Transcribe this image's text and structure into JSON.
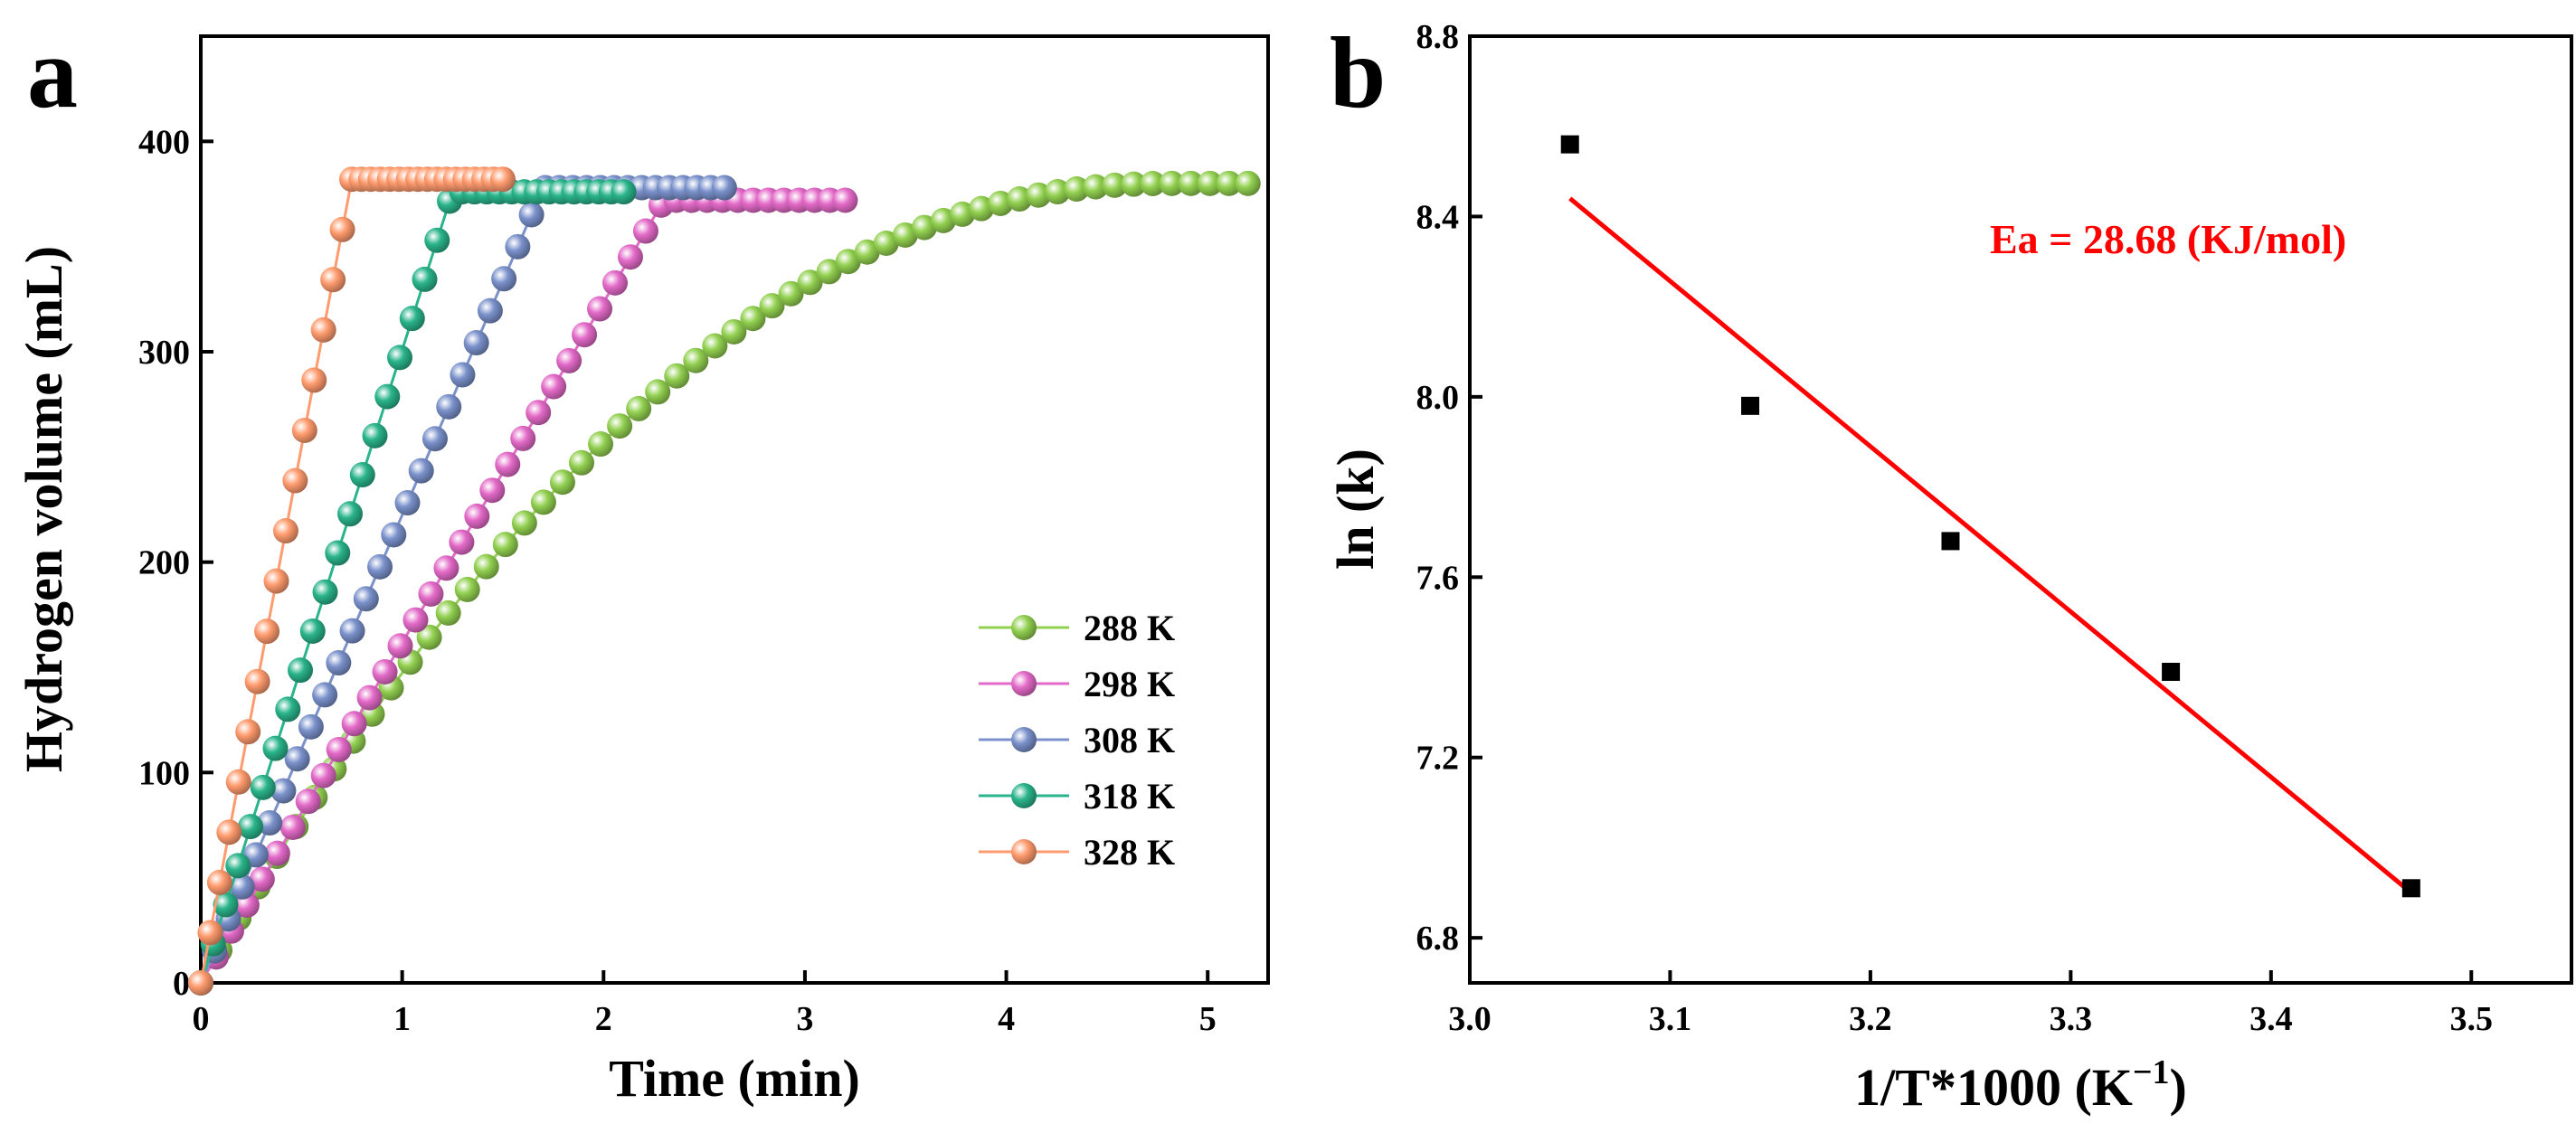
{
  "panel_a": {
    "letter": "a"
  },
  "panel_b": {
    "letter": "b"
  },
  "chart_data": [
    {
      "type": "line",
      "title": "",
      "xlabel": "Time (min)",
      "ylabel": "Hydrogen volume (mL)",
      "xlim": [
        0,
        5.3
      ],
      "ylim": [
        0,
        450
      ],
      "xticks": [
        0,
        1,
        2,
        3,
        4,
        5
      ],
      "yticks": [
        0,
        100,
        200,
        300,
        400
      ],
      "grid": false,
      "legend_position": "bottom-right",
      "series": [
        {
          "name": "288 K",
          "color": "#92d050",
          "marker": "sphere",
          "t_end": 5.2,
          "t_plateau": 4.8,
          "v_max": 380,
          "curve": "saturating",
          "n_points": 55
        },
        {
          "name": "298 K",
          "color": "#e36ac8",
          "marker": "sphere",
          "t_end": 3.2,
          "t_plateau": 2.3,
          "v_max": 372,
          "curve": "linear",
          "n_points": 42
        },
        {
          "name": "308 K",
          "color": "#7a91cb",
          "marker": "sphere",
          "t_end": 2.6,
          "t_plateau": 1.7,
          "v_max": 378,
          "curve": "linear",
          "n_points": 38
        },
        {
          "name": "318 K",
          "color": "#2ab48a",
          "marker": "sphere",
          "t_end": 2.1,
          "t_plateau": 1.25,
          "v_max": 376,
          "curve": "linear",
          "n_points": 34
        },
        {
          "name": "328 K",
          "color": "#ff9b6e",
          "marker": "sphere",
          "t_end": 1.5,
          "t_plateau": 0.75,
          "v_max": 382,
          "curve": "linear",
          "n_points": 32
        }
      ]
    },
    {
      "type": "scatter",
      "title": "",
      "xlabel": "1/T*1000 (K",
      "xlabel_superscript": "−1",
      "xlabel_suffix": ")",
      "ylabel": "ln (k)",
      "xlim": [
        3.0,
        3.55
      ],
      "ylim": [
        6.7,
        8.8
      ],
      "xticks": [
        3.0,
        3.1,
        3.2,
        3.3,
        3.4,
        3.5
      ],
      "yticks": [
        6.8,
        7.2,
        7.6,
        8.0,
        8.4,
        8.8
      ],
      "grid": false,
      "points": {
        "x": [
          3.05,
          3.14,
          3.24,
          3.35,
          3.47
        ],
        "y": [
          8.56,
          7.98,
          7.68,
          7.39,
          6.91
        ],
        "color": "#000000",
        "marker": "square"
      },
      "fit_line": {
        "x": [
          3.05,
          3.47
        ],
        "y": [
          8.44,
          6.9
        ],
        "color": "#ff0000"
      },
      "annotation": "Ea = 28.68 (KJ/mol)"
    }
  ]
}
